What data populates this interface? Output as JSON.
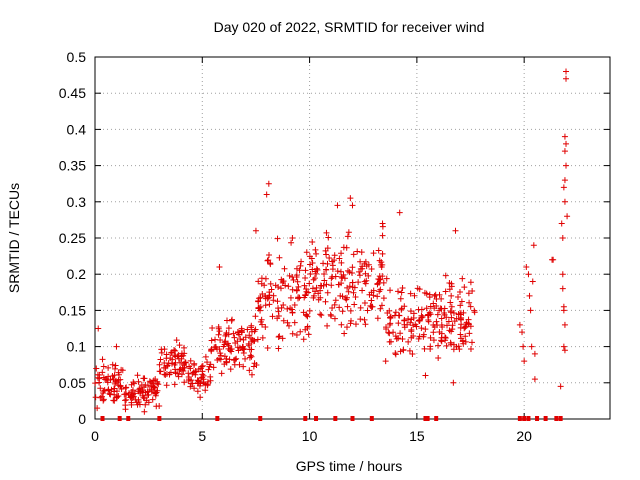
{
  "chart_data": {
    "type": "scatter",
    "title": "Day 020 of 2022, SRMTID for receiver wind",
    "xlabel": "GPS time / hours",
    "ylabel": "SRMTID / TECUs",
    "xlim": [
      0,
      24
    ],
    "ylim": [
      0,
      0.5
    ],
    "x_ticks": [
      0,
      5,
      10,
      15,
      20
    ],
    "x_tick_labels": [
      "0",
      "5",
      "10",
      "15",
      "20"
    ],
    "y_ticks": [
      0,
      0.05,
      0.1,
      0.15,
      0.2,
      0.25,
      0.3,
      0.35,
      0.4,
      0.45,
      0.5
    ],
    "y_tick_labels": [
      "0",
      "0.05",
      "0.1",
      "0.15",
      "0.2",
      "0.25",
      "0.3",
      "0.35",
      "0.4",
      "0.45",
      "0.5"
    ],
    "grid": true,
    "marker": "+",
    "marker_color": "#e00000",
    "series": [
      {
        "name": "SRMTID",
        "segments": [
          {
            "x_start": 0.0,
            "x_end": 1.3,
            "y_center": 0.05,
            "y_spread": 0.025
          },
          {
            "x_start": 1.3,
            "x_end": 3.0,
            "y_center": 0.04,
            "y_spread": 0.02
          },
          {
            "x_start": 3.0,
            "x_end": 4.3,
            "y_center": 0.075,
            "y_spread": 0.025
          },
          {
            "x_start": 4.3,
            "x_end": 5.4,
            "y_center": 0.06,
            "y_spread": 0.02
          },
          {
            "x_start": 5.4,
            "x_end": 7.6,
            "y_center": 0.1,
            "y_spread": 0.03
          },
          {
            "x_start": 7.6,
            "x_end": 10.0,
            "y_center": 0.17,
            "y_spread": 0.06
          },
          {
            "x_start": 10.0,
            "x_end": 13.5,
            "y_center": 0.19,
            "y_spread": 0.06
          },
          {
            "x_start": 13.5,
            "x_end": 17.7,
            "y_center": 0.14,
            "y_spread": 0.05
          }
        ],
        "peaks": [
          {
            "x": 8.1,
            "y": 0.325
          },
          {
            "x": 8.0,
            "y": 0.31
          },
          {
            "x": 11.9,
            "y": 0.305
          },
          {
            "x": 12.0,
            "y": 0.295
          },
          {
            "x": 11.3,
            "y": 0.295
          },
          {
            "x": 14.2,
            "y": 0.285
          },
          {
            "x": 13.4,
            "y": 0.27
          },
          {
            "x": 16.8,
            "y": 0.26
          },
          {
            "x": 7.5,
            "y": 0.26
          },
          {
            "x": 9.2,
            "y": 0.25
          },
          {
            "x": 5.8,
            "y": 0.21
          },
          {
            "x": 0.15,
            "y": 0.125
          },
          {
            "x": 1.0,
            "y": 0.1
          },
          {
            "x": 0.1,
            "y": 0.015
          },
          {
            "x": 2.3,
            "y": 0.01
          },
          {
            "x": 4.9,
            "y": 0.03
          },
          {
            "x": 15.4,
            "y": 0.06
          },
          {
            "x": 16.7,
            "y": 0.05
          }
        ],
        "late_points": [
          {
            "x": 19.8,
            "y": 0.13
          },
          {
            "x": 19.9,
            "y": 0.12
          },
          {
            "x": 19.95,
            "y": 0.1
          },
          {
            "x": 20.0,
            "y": 0.08
          },
          {
            "x": 20.1,
            "y": 0.21
          },
          {
            "x": 20.2,
            "y": 0.2
          },
          {
            "x": 20.25,
            "y": 0.17
          },
          {
            "x": 20.3,
            "y": 0.15
          },
          {
            "x": 20.35,
            "y": 0.1
          },
          {
            "x": 20.4,
            "y": 0.19
          },
          {
            "x": 20.45,
            "y": 0.24
          },
          {
            "x": 20.5,
            "y": 0.09
          },
          {
            "x": 20.5,
            "y": 0.055
          },
          {
            "x": 21.3,
            "y": 0.22
          },
          {
            "x": 21.35,
            "y": 0.22
          },
          {
            "x": 21.7,
            "y": 0.045
          },
          {
            "x": 21.75,
            "y": 0.27
          },
          {
            "x": 21.8,
            "y": 0.25
          },
          {
            "x": 21.8,
            "y": 0.2
          },
          {
            "x": 21.8,
            "y": 0.18
          },
          {
            "x": 21.85,
            "y": 0.15
          },
          {
            "x": 21.85,
            "y": 0.1
          },
          {
            "x": 21.9,
            "y": 0.13
          },
          {
            "x": 21.9,
            "y": 0.3
          },
          {
            "x": 21.85,
            "y": 0.32
          },
          {
            "x": 21.9,
            "y": 0.33
          },
          {
            "x": 21.95,
            "y": 0.35
          },
          {
            "x": 21.9,
            "y": 0.37
          },
          {
            "x": 21.95,
            "y": 0.38
          },
          {
            "x": 21.9,
            "y": 0.39
          },
          {
            "x": 22.0,
            "y": 0.28
          },
          {
            "x": 21.95,
            "y": 0.47
          },
          {
            "x": 21.95,
            "y": 0.48
          },
          {
            "x": 21.85,
            "y": 0.155
          },
          {
            "x": 21.9,
            "y": 0.095
          }
        ],
        "zero_points": [
          0.35,
          1.15,
          1.55,
          3.0,
          5.7,
          7.7,
          9.8,
          10.3,
          11.2,
          12.0,
          12.9,
          15.4,
          15.5,
          15.9,
          19.8,
          20.0,
          20.2,
          20.6,
          21.0,
          21.5,
          21.7
        ]
      }
    ]
  }
}
